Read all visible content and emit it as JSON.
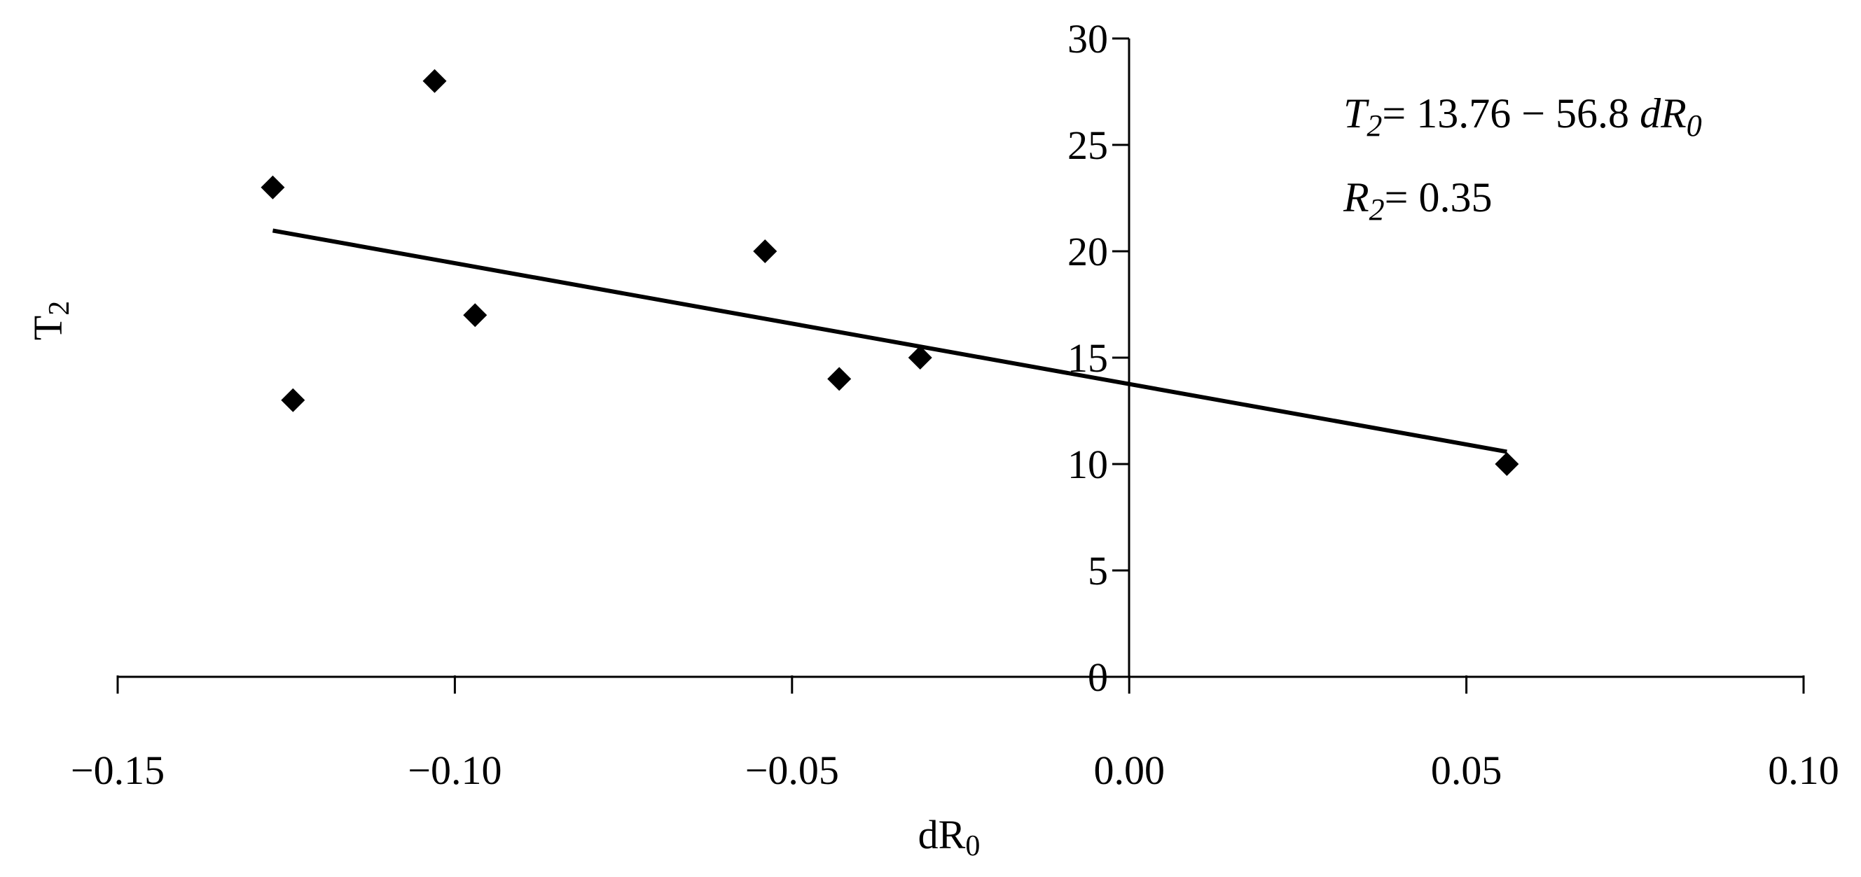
{
  "chart_data": {
    "type": "scatter",
    "xlabel": {
      "base": "dR",
      "sub": "0"
    },
    "ylabel": {
      "base": "T",
      "sub": "2"
    },
    "xlim": [
      -0.15,
      0.1
    ],
    "ylim": [
      0,
      30
    ],
    "x_ticks": [
      -0.15,
      -0.1,
      -0.05,
      0.0,
      0.05,
      0.1
    ],
    "x_tick_labels": [
      "−0.15",
      "−0.10",
      "−0.05",
      "0.00",
      "0.05",
      "0.10"
    ],
    "y_ticks": [
      0,
      5,
      10,
      15,
      20,
      25,
      30
    ],
    "y_tick_labels": [
      "0",
      "5",
      "10",
      "15",
      "20",
      "25",
      "30"
    ],
    "grid": false,
    "legend": "none",
    "points": [
      {
        "x": -0.127,
        "y": 23
      },
      {
        "x": -0.124,
        "y": 13
      },
      {
        "x": -0.103,
        "y": 28
      },
      {
        "x": -0.097,
        "y": 17
      },
      {
        "x": -0.054,
        "y": 20
      },
      {
        "x": -0.043,
        "y": 14
      },
      {
        "x": -0.031,
        "y": 15
      },
      {
        "x": 0.056,
        "y": 10
      }
    ],
    "trendline": {
      "intercept": 13.76,
      "slope": -56.8,
      "x_range": [
        -0.127,
        0.056
      ]
    },
    "annotations": {
      "equation": {
        "lhs_base": "T",
        "lhs_sub": "2",
        "rhs": "= 13.76 − 56.8 ",
        "var_base": "dR",
        "var_sub": "0"
      },
      "r2": {
        "base": "R",
        "sub": "2",
        "value": "= 0.35"
      }
    },
    "colors": {
      "marker": "#000000",
      "line": "#000000",
      "axis": "#000000"
    },
    "marker_shape": "diamond"
  }
}
